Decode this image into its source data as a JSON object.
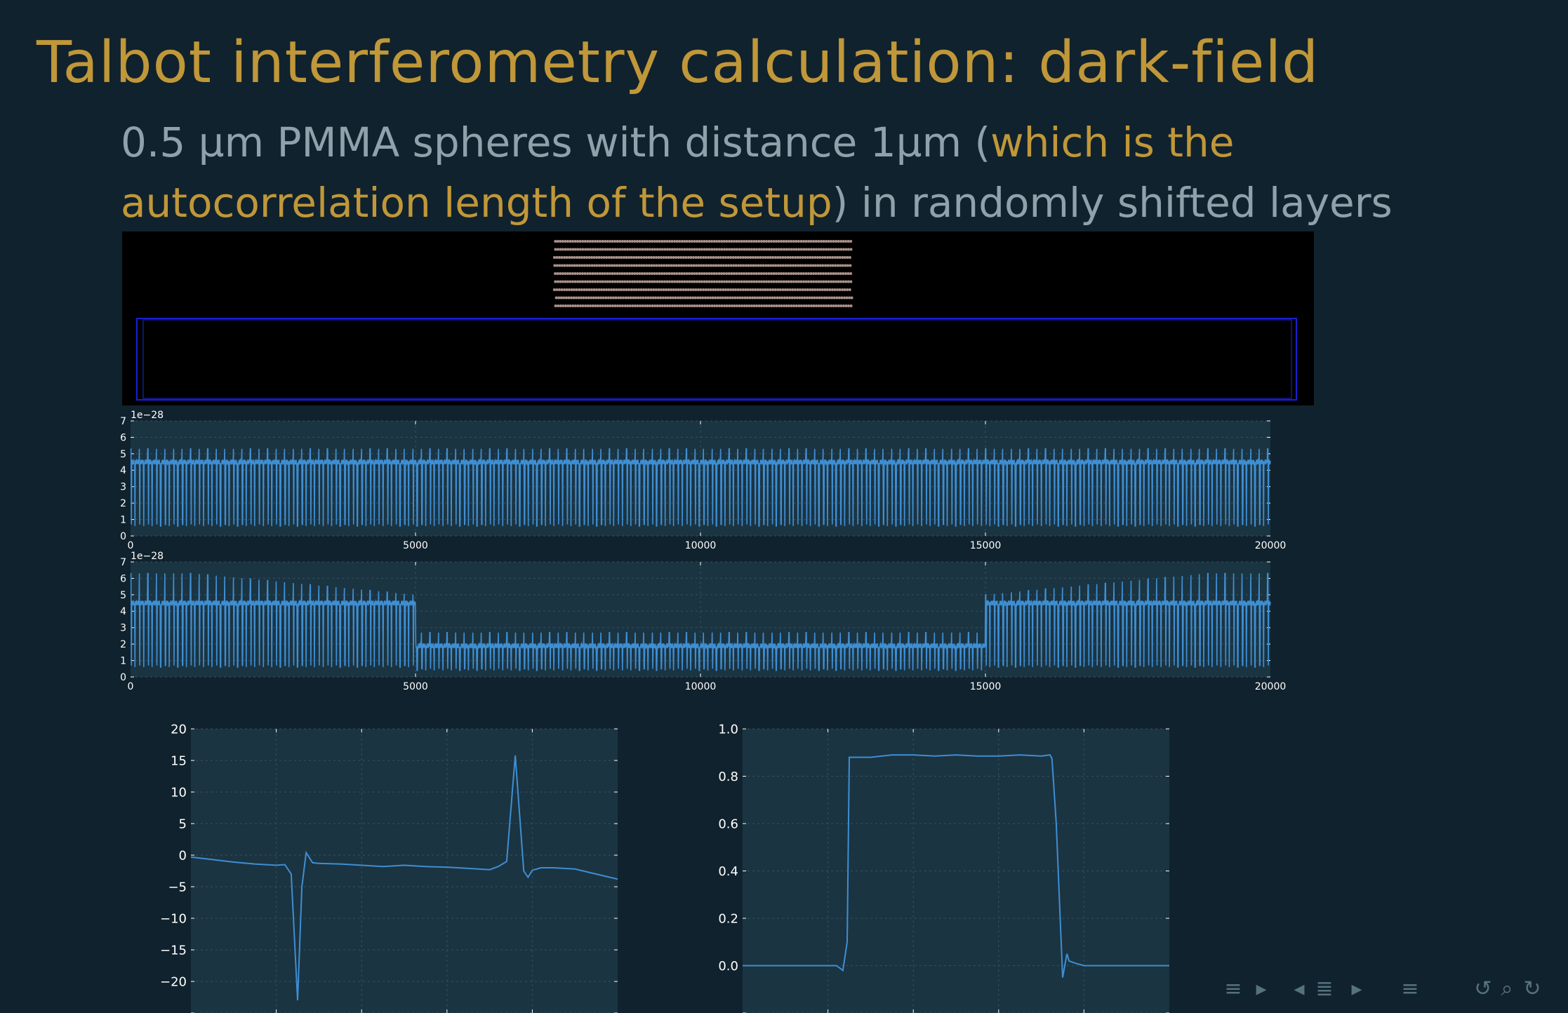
{
  "slide": {
    "title": "Talbot interferometry calculation: dark-field",
    "subtitle": {
      "part1": "0.5 µm PMMA spheres with distance 1µm (",
      "highlight": "which is the autocorrelation length of the setup",
      "part2": ") in randomly shifted layers"
    }
  },
  "colors": {
    "background": "#10222d",
    "title": "#c09739",
    "text": "#8fa2ac",
    "line": "#3f8ed2",
    "axes_bg": "#1b3442",
    "spheres": "#a89088",
    "detector_box": "#1a1fd0"
  },
  "simulation_view": {
    "sphere_rows": 9,
    "sphere_cols": 120,
    "x_range": [
      -0.5,
      1.5
    ],
    "sample_x": [
      0.225,
      0.725
    ]
  },
  "navigation": {
    "icons": [
      "frame-list-icon",
      "arrow-right-icon",
      "arrow-left-icon",
      "section-list-icon",
      "arrow-right-icon",
      "outline-icon",
      "undo-icon",
      "search-icon",
      "redo-icon"
    ],
    "glyphs": [
      "≡",
      "▸",
      "◂",
      "≣",
      "▸",
      "≡",
      "↺",
      "⌕",
      "↻"
    ]
  },
  "chart_data": [
    {
      "type": "line",
      "title": "",
      "offset_text": "1e−28",
      "xlim": [
        0,
        20000
      ],
      "ylim": [
        0,
        7
      ],
      "xticks": [
        0,
        5000,
        10000,
        15000,
        20000
      ],
      "yticks": [
        0,
        1,
        2,
        3,
        4,
        5,
        6,
        7
      ],
      "grid": true,
      "pattern": {
        "period": 150,
        "baseline_high": 4.5,
        "baseline_low": 0.7,
        "peak_max": 6.3,
        "peak_mid": 5.3,
        "peak_region_edges": [
          3500,
          16500
        ]
      }
    },
    {
      "type": "line",
      "title": "",
      "offset_text": "1e−28",
      "xlim": [
        0,
        20000
      ],
      "ylim": [
        0,
        7
      ],
      "xticks": [
        0,
        5000,
        10000,
        15000,
        20000
      ],
      "yticks": [
        0,
        1,
        2,
        3,
        4,
        5,
        6,
        7
      ],
      "grid": true,
      "pattern": {
        "period": 150,
        "outer_high": 4.5,
        "outer_low": 0.7,
        "inner_high": 1.9,
        "inner_low": 0.5,
        "inner_peak": 2.7,
        "sample_edges": [
          5000,
          15000
        ]
      }
    },
    {
      "type": "line",
      "title": "",
      "xlim": [
        0,
        1
      ],
      "ylim": [
        -25,
        20
      ],
      "yticks": [
        -25,
        -20,
        -15,
        -10,
        -5,
        0,
        5,
        10,
        15,
        20
      ],
      "ytick_labels": [
        "",
        "−20",
        "−15",
        "−10",
        "−5",
        "0",
        "5",
        "10",
        "15",
        "20"
      ],
      "grid": true,
      "x": [
        0.0,
        0.05,
        0.1,
        0.15,
        0.2,
        0.22,
        0.235,
        0.25,
        0.26,
        0.27,
        0.285,
        0.3,
        0.35,
        0.4,
        0.45,
        0.5,
        0.55,
        0.6,
        0.65,
        0.7,
        0.72,
        0.74,
        0.76,
        0.78,
        0.79,
        0.8,
        0.82,
        0.85,
        0.9,
        0.95,
        1.0
      ],
      "y": [
        -0.3,
        -0.7,
        -1.1,
        -1.4,
        -1.6,
        -1.5,
        -3.0,
        -23.0,
        -5.0,
        0.4,
        -1.2,
        -1.3,
        -1.4,
        -1.6,
        -1.8,
        -1.6,
        -1.8,
        -1.9,
        -2.1,
        -2.3,
        -1.8,
        -1.0,
        15.8,
        -2.5,
        -3.5,
        -2.4,
        -2.0,
        -2.0,
        -2.2,
        -3.0,
        -3.8
      ]
    },
    {
      "type": "line",
      "title": "",
      "xlim": [
        0,
        1
      ],
      "ylim": [
        -0.2,
        1.0
      ],
      "yticks": [
        -0.2,
        0.0,
        0.2,
        0.4,
        0.6,
        0.8,
        1.0
      ],
      "ytick_labels": [
        "",
        "0.0",
        "0.2",
        "0.4",
        "0.6",
        "0.8",
        "1.0"
      ],
      "grid": true,
      "x": [
        0.0,
        0.1,
        0.2,
        0.22,
        0.235,
        0.245,
        0.25,
        0.3,
        0.35,
        0.4,
        0.45,
        0.5,
        0.55,
        0.6,
        0.65,
        0.7,
        0.72,
        0.725,
        0.735,
        0.75,
        0.76,
        0.765,
        0.78,
        0.8,
        0.9,
        1.0
      ],
      "y": [
        0.0,
        0.0,
        0.0,
        0.0,
        -0.02,
        0.1,
        0.88,
        0.88,
        0.89,
        0.89,
        0.885,
        0.89,
        0.885,
        0.885,
        0.89,
        0.885,
        0.89,
        0.875,
        0.6,
        -0.05,
        0.05,
        0.02,
        0.01,
        0.0,
        0.0,
        0.0
      ]
    }
  ]
}
